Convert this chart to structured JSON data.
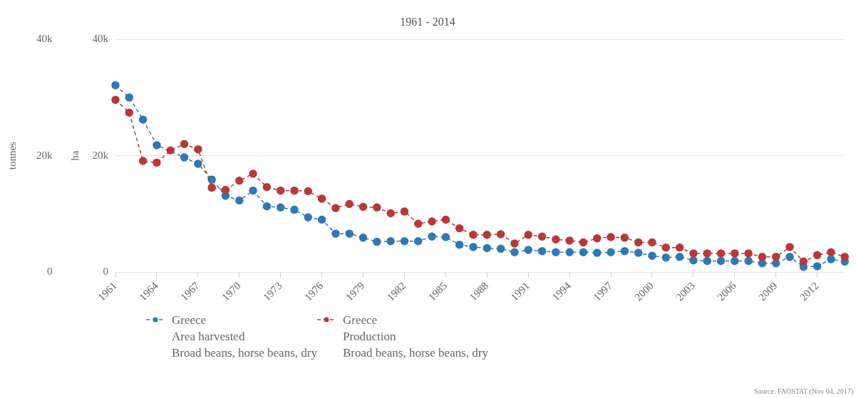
{
  "chart_data": {
    "type": "line",
    "subtitle": "1961 - 2014",
    "ylabel": "ha",
    "y2label": "tonnes",
    "categories": [
      "1961",
      null,
      null,
      "1964",
      null,
      null,
      "1967",
      null,
      null,
      "1970",
      null,
      null,
      "1973",
      null,
      null,
      "1976",
      null,
      null,
      "1979",
      null,
      null,
      "1982",
      null,
      null,
      "1985",
      null,
      null,
      "1988",
      null,
      null,
      "1991",
      null,
      null,
      "1994",
      null,
      null,
      "1997",
      null,
      null,
      "2000",
      null,
      null,
      "2003",
      null,
      null,
      "2006",
      null,
      null,
      "2009",
      null,
      null,
      "2012",
      null,
      null
    ],
    "series": [
      {
        "name": "Greece\nArea harvested\nBroad beans, horse beans, dry",
        "color": "#2f78b8",
        "axis": "y",
        "values": [
          32100,
          30000,
          26200,
          21800,
          null,
          19700,
          18600,
          15900,
          13100,
          12300,
          14000,
          11300,
          11100,
          10700,
          9400,
          9000,
          6600,
          6600,
          5900,
          5200,
          5300,
          5300,
          5300,
          6100,
          6000,
          4700,
          4300,
          4100,
          4000,
          3400,
          3800,
          3600,
          3400,
          3400,
          3400,
          3300,
          3400,
          3600,
          3300,
          2800,
          2500,
          2600,
          2000,
          1900,
          1900,
          1900,
          1900,
          1500,
          1500,
          2600,
          900,
          1000,
          2200,
          1800
        ]
      },
      {
        "name": "Greece\nProduction\nBroad beans, horse beans, dry",
        "color": "#b8383a",
        "axis": "y2",
        "values": [
          29600,
          27400,
          19100,
          18800,
          20900,
          22000,
          21100,
          14500,
          14100,
          15700,
          16900,
          14600,
          14000,
          14000,
          13900,
          12600,
          11000,
          11700,
          11200,
          11100,
          10100,
          10400,
          8300,
          8700,
          9000,
          7500,
          6400,
          6400,
          6500,
          4900,
          6400,
          6100,
          5600,
          5400,
          5100,
          5800,
          6000,
          5900,
          5100,
          5100,
          4200,
          4200,
          3200,
          3200,
          3200,
          3200,
          3200,
          2600,
          2600,
          4300,
          1800,
          2900,
          3400,
          2600
        ]
      }
    ],
    "ylim": [
      0,
      40000
    ],
    "yticks": [
      {
        "value": 0,
        "label": "0"
      },
      {
        "value": 20000,
        "label": "20k"
      },
      {
        "value": 40000,
        "label": "40k"
      }
    ],
    "y2lim": [
      0,
      40000
    ],
    "y2ticks": [
      {
        "value": 0,
        "label": "0"
      },
      {
        "value": 20000,
        "label": "20k"
      },
      {
        "value": 40000,
        "label": "40k"
      }
    ],
    "grid": "y",
    "legend": "bottom",
    "marker": "circle",
    "line_style": "dashed",
    "annotations": [
      "Source: FAOSTAT (Nov 04, 2017)"
    ]
  }
}
